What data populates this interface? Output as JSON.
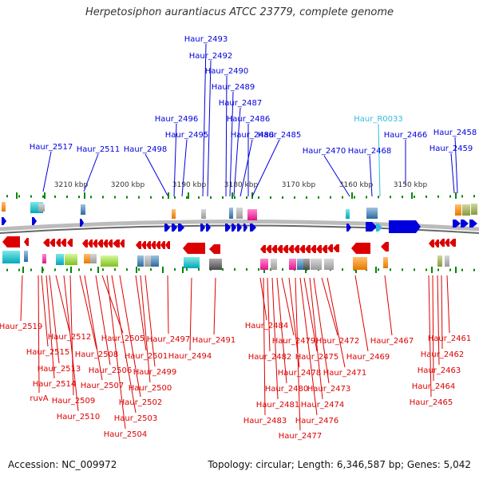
{
  "title": "Herpetosiphon aurantiacus ATCC 23779, complete genome",
  "footer": {
    "accession": "Accession: NC_009972",
    "topology": "Topology: circular; Length: 6,346,587 bp; Genes: 5,042"
  },
  "colors": {
    "forward": "#0000dd",
    "reverse": "#dd0000",
    "rna": "#33bbdd",
    "backbone": "#888888",
    "tick": "#008800"
  },
  "scale_labels": [
    "3210 kbp",
    "3200 kbp",
    "3190 kbp",
    "3180 kbp",
    "3170 kbp",
    "3160 kbp",
    "3150 kbp"
  ],
  "forward_genes": [
    {
      "label": "Haur_2517"
    },
    {
      "label": "Haur_2511"
    },
    {
      "label": "Haur_2498"
    },
    {
      "label": "Haur_2496"
    },
    {
      "label": "Haur_2495"
    },
    {
      "label": "Haur_2493"
    },
    {
      "label": "Haur_2492"
    },
    {
      "label": "Haur_2490"
    },
    {
      "label": "Haur_2489"
    },
    {
      "label": "Haur_2487"
    },
    {
      "label": "Haur_2486"
    },
    {
      "label": "Haur_2488"
    },
    {
      "label": "Haur_2485"
    },
    {
      "label": "Haur_2470"
    },
    {
      "label": "Haur_2468"
    },
    {
      "label": "Haur_R0033"
    },
    {
      "label": "Haur_2466"
    },
    {
      "label": "Haur_2458"
    },
    {
      "label": "Haur_2459"
    }
  ],
  "reverse_genes": [
    {
      "label": "Haur_2519"
    },
    {
      "label": "Haur_2515"
    },
    {
      "label": "Haur_2514"
    },
    {
      "label": "ruvA"
    },
    {
      "label": "Haur_2513"
    },
    {
      "label": "Haur_2512"
    },
    {
      "label": "Haur_2510"
    },
    {
      "label": "Haur_2509"
    },
    {
      "label": "Haur_2508"
    },
    {
      "label": "Haur_2507"
    },
    {
      "label": "Haur_2506"
    },
    {
      "label": "Haur_2505"
    },
    {
      "label": "Haur_2504"
    },
    {
      "label": "Haur_2503"
    },
    {
      "label": "Haur_2502"
    },
    {
      "label": "Haur_2501"
    },
    {
      "label": "Haur_2500"
    },
    {
      "label": "Haur_2499"
    },
    {
      "label": "Haur_2497"
    },
    {
      "label": "Haur_2494"
    },
    {
      "label": "Haur_2491"
    },
    {
      "label": "Haur_2484"
    },
    {
      "label": "Haur_2483"
    },
    {
      "label": "Haur_2482"
    },
    {
      "label": "Haur_2481"
    },
    {
      "label": "Haur_2480"
    },
    {
      "label": "Haur_2479"
    },
    {
      "label": "Haur_2478"
    },
    {
      "label": "Haur_2477"
    },
    {
      "label": "Haur_2476"
    },
    {
      "label": "Haur_2475"
    },
    {
      "label": "Haur_2474"
    },
    {
      "label": "Haur_2473"
    },
    {
      "label": "Haur_2472"
    },
    {
      "label": "Haur_2471"
    },
    {
      "label": "Haur_2469"
    },
    {
      "label": "Haur_2467"
    },
    {
      "label": "Haur_2465"
    },
    {
      "label": "Haur_2464"
    },
    {
      "label": "Haur_2463"
    },
    {
      "label": "Haur_2462"
    },
    {
      "label": "Haur_2461"
    }
  ]
}
